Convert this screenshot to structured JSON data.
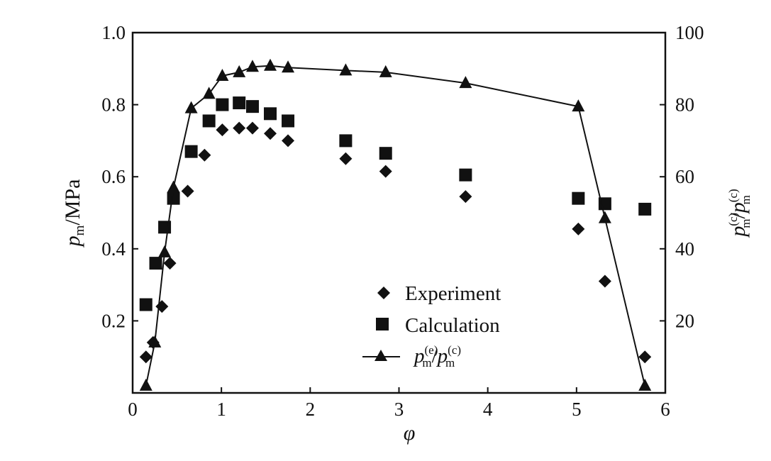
{
  "chart_data": {
    "type": "scatter",
    "xlabel": "φ",
    "ylabel": "p_m/MPa",
    "ylabel_display": {
      "base": "p",
      "sub": "m",
      "rest": "/MPa"
    },
    "y2label": "p_m^(c)/p_m^(c)",
    "y2label_display": {
      "b1": "p",
      "sub1": "m",
      "sup1": "(c)",
      "sep": "/",
      "b2": "p",
      "sub2": "m",
      "sup2": "(c)"
    },
    "xlim": [
      0,
      6
    ],
    "ylim": [
      0,
      1.0
    ],
    "y2lim": [
      0,
      100
    ],
    "xticks": [
      0,
      1,
      2,
      3,
      4,
      5,
      6
    ],
    "yticks": [
      0.2,
      0.4,
      0.6,
      0.8,
      1.0
    ],
    "yticklabels": [
      "0.2",
      "0.4",
      "0.6",
      "0.8",
      "1.0"
    ],
    "y2ticks": [
      20,
      40,
      60,
      80,
      100
    ],
    "legend_position": "center-right",
    "series": [
      {
        "name": "Experiment",
        "marker": "diamond",
        "axis": "left",
        "x": [
          0.15,
          0.23,
          0.33,
          0.42,
          0.62,
          0.81,
          1.01,
          1.2,
          1.35,
          1.55,
          1.75,
          2.4,
          2.85,
          3.75,
          5.02,
          5.32,
          5.77
        ],
        "y": [
          0.1,
          0.14,
          0.24,
          0.36,
          0.56,
          0.66,
          0.73,
          0.735,
          0.735,
          0.72,
          0.7,
          0.65,
          0.615,
          0.545,
          0.455,
          0.31,
          0.1
        ]
      },
      {
        "name": "Calculation",
        "marker": "square",
        "axis": "left",
        "x": [
          0.15,
          0.26,
          0.36,
          0.46,
          0.66,
          0.86,
          1.01,
          1.2,
          1.35,
          1.55,
          1.75,
          2.4,
          2.85,
          3.75,
          5.02,
          5.32,
          5.77
        ],
        "y": [
          0.245,
          0.36,
          0.46,
          0.54,
          0.67,
          0.755,
          0.8,
          0.805,
          0.795,
          0.775,
          0.755,
          0.7,
          0.665,
          0.605,
          0.54,
          0.525,
          0.51
        ]
      },
      {
        "name": "p_m^(e)/p_m^(c)",
        "legend_display": {
          "b1": "p",
          "sub1": "m",
          "sup1": "(e)",
          "sep": "/",
          "b2": "p",
          "sub2": "m",
          "sup2": "(c)"
        },
        "marker": "triangle",
        "line": true,
        "axis": "right",
        "x": [
          0.15,
          0.25,
          0.36,
          0.46,
          0.66,
          0.86,
          1.01,
          1.2,
          1.35,
          1.55,
          1.75,
          2.4,
          2.85,
          3.75,
          5.02,
          5.32,
          5.77
        ],
        "y": [
          2,
          14,
          39,
          57,
          79,
          83,
          88,
          89,
          90.5,
          90.8,
          90.3,
          89.5,
          89,
          86,
          79.5,
          48.5,
          2
        ]
      }
    ]
  }
}
